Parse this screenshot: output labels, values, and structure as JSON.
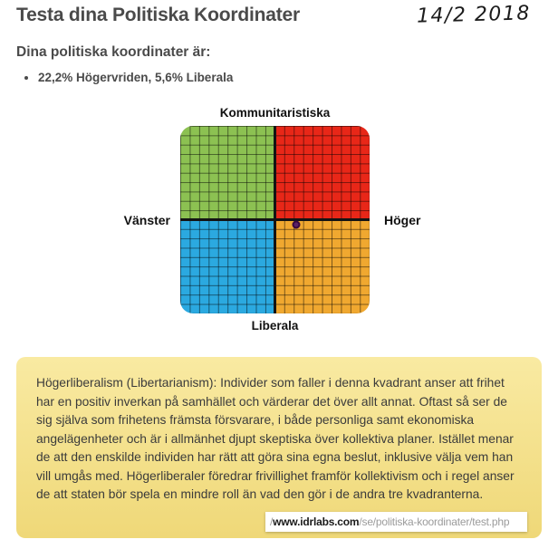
{
  "page": {
    "title": "Testa dina Politiska Koordinater",
    "handwritten_date": "14/2 2018",
    "subtitle": "Dina politiska koordinater är:",
    "result_bullet": "22,2% Högervriden, 5,6% Liberala"
  },
  "chart_data": {
    "type": "scatter",
    "axes_labels": {
      "top": "Kommunitaristiska",
      "bottom": "Liberala",
      "left": "Vänster",
      "right": "Höger"
    },
    "x_range": [
      -100,
      100
    ],
    "y_range": [
      -100,
      100
    ],
    "grid_cells_per_quadrant": 10,
    "points": [
      {
        "name": "result-dot",
        "x_pct_right": 22.2,
        "y_pct_liberal": 5.6,
        "color": "#5b2167"
      }
    ],
    "quadrants": [
      {
        "position": "top-left",
        "color": "#8cc152"
      },
      {
        "position": "top-right",
        "color": "#e82718"
      },
      {
        "position": "bottom-left",
        "color": "#2ba9e0"
      },
      {
        "position": "bottom-right",
        "color": "#f0a830"
      }
    ]
  },
  "info_box": {
    "text": "Högerliberalism (Libertarianism): Individer som faller i denna kvadrant anser att frihet har en positiv inverkan på samhället och värderar det över allt annat. Oftast så ser de sig själva som frihetens främsta försvarare, i både personliga samt ekonomiska angelägenheter och är i allmänhet djupt skeptiska över kollektiva planer. Istället menar de att den enskilde individen har rätt att göra sina egna beslut, inklusive välja vem han vill umgås med. Högerliberaler föredrar frivillighet framför kollektivism och i regel anser de att staten bör spela en mindre roll än vad den gör i de andra tre kvadranterna."
  },
  "url_bar": {
    "prefix": "/",
    "domain": "www.idrlabs.com",
    "path": "/se/politiska-koordinater/test.php"
  },
  "colors": {
    "quadrant-green": "#8cc152",
    "quadrant-red": "#e82718",
    "quadrant-blue": "#2ba9e0",
    "quadrant-yellow": "#f0a830",
    "dot": "#5b2167",
    "dot-border": "#38073f",
    "box-top": "#f9eaa2",
    "box-bottom": "#efd878",
    "heading": "#4a4a4a",
    "url-muted": "#9b9b9b"
  }
}
